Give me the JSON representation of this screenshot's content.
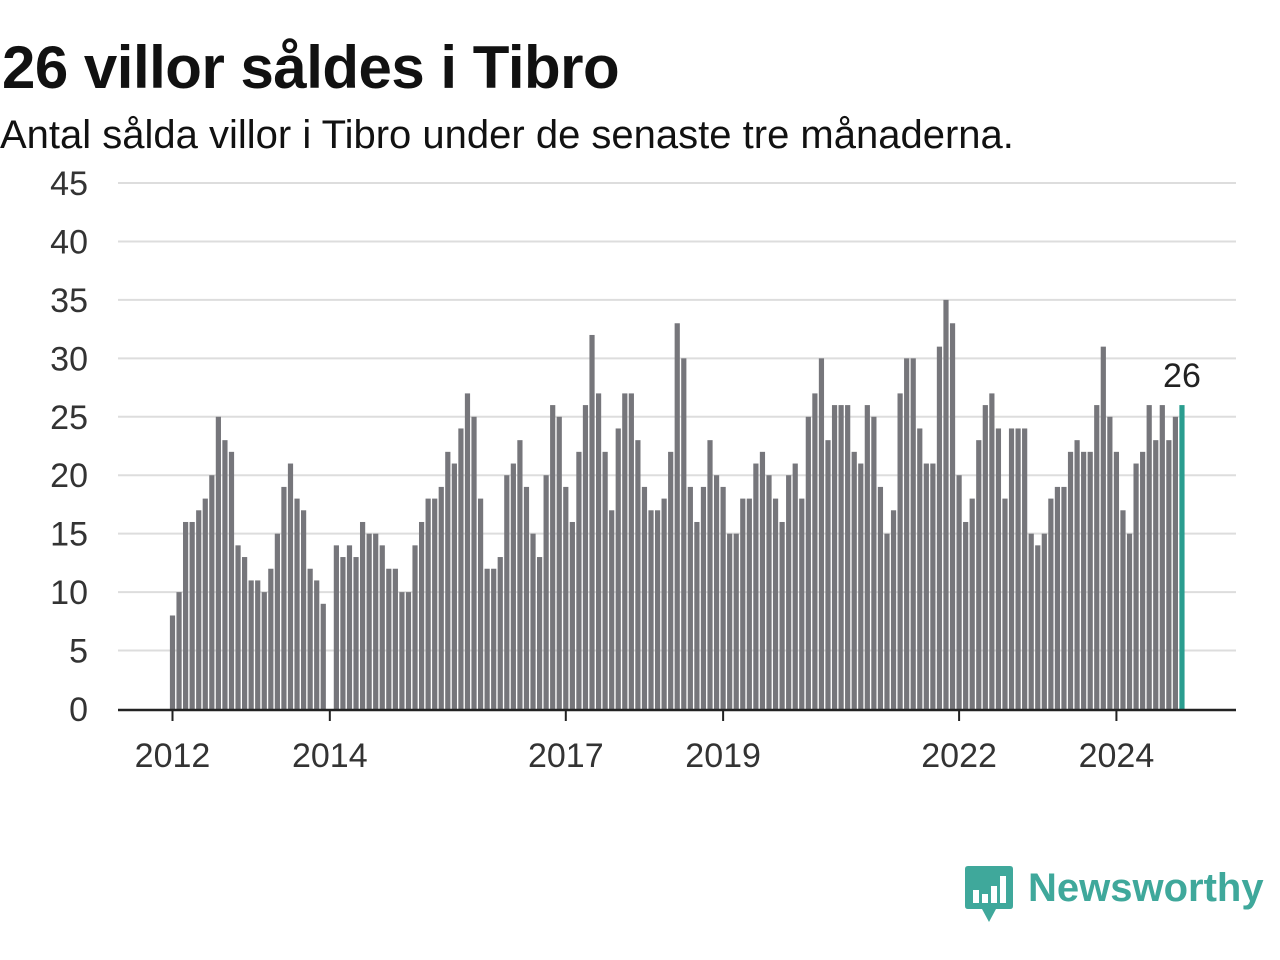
{
  "title": "26 villor såldes i Tibro",
  "subtitle": "Antal sålda villor i Tibro under de senaste tre månaderna.",
  "brand": {
    "name": "Newsworthy",
    "icon": "newsworthy-logo-icon",
    "color": "#3fa89b"
  },
  "colors": {
    "bar": "#76767b",
    "highlight": "#2a9d8f",
    "grid": "#dddddd",
    "axis": "#222222"
  },
  "chart_data": {
    "type": "bar",
    "x_start": "2012-01",
    "x_end": "2024-10",
    "ylim": [
      0,
      45
    ],
    "yticks": [
      0,
      5,
      10,
      15,
      20,
      25,
      30,
      35,
      40,
      45
    ],
    "xticks": [
      {
        "label": "2012",
        "x": "2012-01"
      },
      {
        "label": "2014",
        "x": "2014-01"
      },
      {
        "label": "2017",
        "x": "2017-01"
      },
      {
        "label": "2019",
        "x": "2019-01"
      },
      {
        "label": "2022",
        "x": "2022-01"
      },
      {
        "label": "2024",
        "x": "2024-01"
      }
    ],
    "values": [
      8,
      10,
      16,
      16,
      17,
      18,
      20,
      25,
      23,
      22,
      14,
      13,
      11,
      11,
      10,
      12,
      15,
      19,
      21,
      18,
      17,
      12,
      11,
      9,
      0,
      14,
      13,
      14,
      13,
      16,
      15,
      15,
      14,
      12,
      12,
      10,
      10,
      14,
      16,
      18,
      18,
      19,
      22,
      21,
      24,
      27,
      25,
      18,
      12,
      12,
      13,
      20,
      21,
      23,
      19,
      15,
      13,
      20,
      26,
      25,
      19,
      16,
      22,
      26,
      32,
      27,
      22,
      17,
      24,
      27,
      27,
      23,
      19,
      17,
      17,
      18,
      22,
      33,
      30,
      19,
      16,
      19,
      23,
      20,
      19,
      15,
      15,
      18,
      18,
      21,
      22,
      20,
      18,
      16,
      20,
      21,
      18,
      25,
      27,
      30,
      23,
      26,
      26,
      26,
      22,
      21,
      26,
      25,
      19,
      15,
      17,
      27,
      30,
      30,
      24,
      21,
      21,
      31,
      35,
      33,
      20,
      16,
      18,
      23,
      26,
      27,
      24,
      18,
      24,
      24,
      24,
      15,
      14,
      15,
      18,
      19,
      19,
      22,
      23,
      22,
      22,
      26,
      31,
      25,
      22,
      17,
      15,
      21,
      22,
      26,
      23,
      26,
      23,
      25,
      26
    ],
    "highlight_label": "26"
  }
}
